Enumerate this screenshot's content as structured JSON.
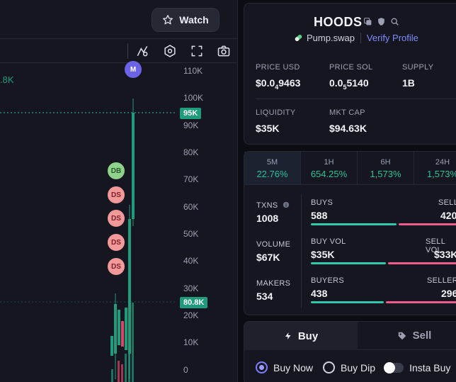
{
  "chart": {
    "watch_label": "Watch",
    "low_label": ".8K",
    "price_ticks": [
      "110K",
      "100K",
      "90K",
      "80K",
      "70K",
      "60K",
      "50K",
      "40K",
      "30K",
      "20K",
      "10K",
      "0"
    ],
    "current_badge": "95K",
    "low_badge": "80.8K",
    "markers": [
      "M",
      "DB",
      "DS",
      "DS",
      "DS",
      "DS"
    ]
  },
  "token": {
    "name": "HOODS",
    "dex": "Pump.swap",
    "verify_label": "Verify Profile",
    "stats": {
      "price_usd_label": "PRICE USD",
      "price_usd_prefix": "$0.0",
      "price_usd_sub": "4",
      "price_usd_rest": "9463",
      "price_sol_label": "PRICE SOL",
      "price_sol_prefix": "0.0",
      "price_sol_sub": "5",
      "price_sol_rest": "5140",
      "supply_label": "SUPPLY",
      "supply_value": "1B",
      "liquidity_label": "LIQUIDITY",
      "liquidity_value": "$35K",
      "mktcap_label": "MKT CAP",
      "mktcap_value": "$94.63K"
    }
  },
  "timeframes": [
    {
      "label": "5M",
      "pct": "22.76%"
    },
    {
      "label": "1H",
      "pct": "654.25%"
    },
    {
      "label": "6H",
      "pct": "1,573%"
    },
    {
      "label": "24H",
      "pct": "1,573%"
    }
  ],
  "txns": {
    "txns_label": "TXNS",
    "txns_value": "1008",
    "volume_label": "VOLUME",
    "volume_value": "$67K",
    "makers_label": "MAKERS",
    "makers_value": "534",
    "buys_label": "BUYS",
    "buys_value": "588",
    "sells_label": "SELLS",
    "sells_value": "420",
    "buy_vol_label": "BUY VOL",
    "buy_vol_value": "$35K",
    "sell_vol_label": "SELL VOL",
    "sell_vol_value": "$33K",
    "buyers_label": "BUYERS",
    "buyers_value": "438",
    "sellers_label": "SELLERS",
    "sellers_value": "296"
  },
  "trade": {
    "buy_tab": "Buy",
    "sell_tab": "Sell",
    "opt_buy_now": "Buy Now",
    "opt_buy_dip": "Buy Dip",
    "opt_insta_buy": "Insta Buy"
  },
  "colors": {
    "green": "#27c29a",
    "red": "#ef5b8a",
    "accent": "#7e8cff"
  }
}
